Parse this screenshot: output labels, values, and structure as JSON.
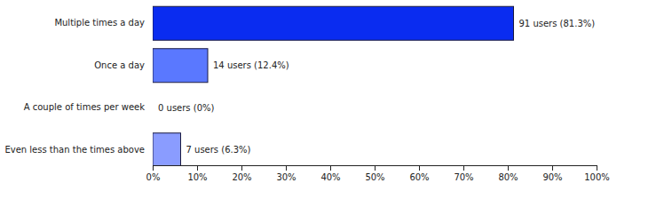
{
  "chart_data": {
    "type": "bar",
    "orientation": "horizontal",
    "categories": [
      "Multiple times a day",
      "Once a day",
      "A couple of times per week",
      "Even less than the times above"
    ],
    "values": [
      81.3,
      12.4,
      0,
      6.3
    ],
    "value_labels": [
      "91 users (81.3%)",
      "14 users (12.4%)",
      "0 users (0%)",
      "7 users (6.3%)"
    ],
    "colors": [
      "#0a2cf0",
      "#5a78ff",
      "#ffffff",
      "#8a9cff"
    ],
    "data_labels": true,
    "grid": false,
    "xlim": [
      0,
      100
    ],
    "xticks": [
      {
        "value": 0,
        "label": "0%"
      },
      {
        "value": 10,
        "label": "10%"
      },
      {
        "value": 20,
        "label": "20%"
      },
      {
        "value": 30,
        "label": "30%"
      },
      {
        "value": 40,
        "label": "40%"
      },
      {
        "value": 50,
        "label": "50%"
      },
      {
        "value": 60,
        "label": "60%"
      },
      {
        "value": 70,
        "label": "70%"
      },
      {
        "value": 80,
        "label": "80%"
      },
      {
        "value": 90,
        "label": "90%"
      },
      {
        "value": 100,
        "label": "100%"
      }
    ]
  }
}
